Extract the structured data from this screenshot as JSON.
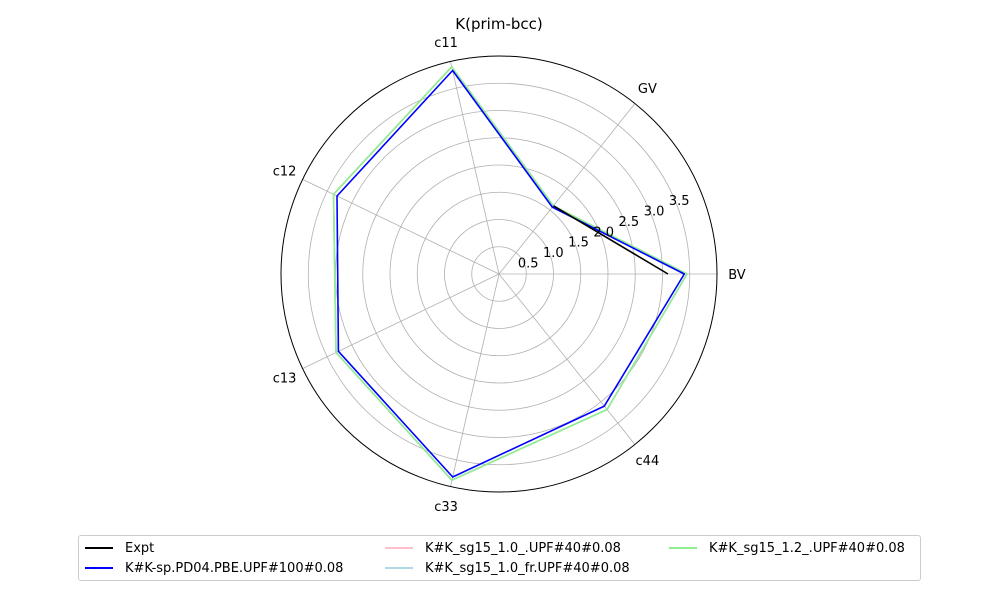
{
  "chart_data": {
    "type": "radar",
    "title": "K(prim-bcc)",
    "axes": [
      "BV",
      "GV",
      "c11",
      "c12",
      "c13",
      "c33",
      "c44"
    ],
    "radial_ticks": [
      "0.5",
      "1.0",
      "1.5",
      "2.0",
      "2.5",
      "3.0",
      "3.5"
    ],
    "rlim": [
      0,
      4.0
    ],
    "grid": true,
    "legend_position": "bottom",
    "series": [
      {
        "name": "Expt",
        "color": "#000000",
        "values": [
          3.1,
          1.6,
          null,
          null,
          null,
          null,
          null
        ]
      },
      {
        "name": "K#K-sp.PD04.PBE.UPF#100#0.08",
        "color": "#0000ff",
        "values": [
          3.4,
          1.57,
          3.83,
          3.3,
          3.27,
          3.82,
          3.1
        ]
      },
      {
        "name": "K#K_sg15_1.0_.UPF#40#0.08",
        "color": "#ffc0cb",
        "values": [
          3.45,
          1.6,
          3.9,
          3.37,
          3.32,
          3.88,
          3.18
        ]
      },
      {
        "name": "K#K_sg15_1.0_fr.UPF#40#0.08",
        "color": "#add8e6",
        "values": [
          3.45,
          1.6,
          3.9,
          3.37,
          3.32,
          3.88,
          3.18
        ]
      },
      {
        "name": "K#K_sg15_1.2_.UPF#40#0.08",
        "color": "#90ee90",
        "values": [
          3.45,
          1.6,
          3.9,
          3.37,
          3.32,
          3.88,
          3.18
        ]
      }
    ]
  }
}
